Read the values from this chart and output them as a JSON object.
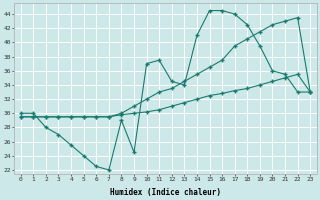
{
  "xlabel": "Humidex (Indice chaleur)",
  "background_color": "#cce8e8",
  "grid_color": "#ffffff",
  "line_color": "#1a7a6e",
  "xlim": [
    -0.5,
    23.5
  ],
  "ylim": [
    21.5,
    45.5
  ],
  "yticks": [
    22,
    24,
    26,
    28,
    30,
    32,
    34,
    36,
    38,
    40,
    42,
    44
  ],
  "xticks": [
    0,
    1,
    2,
    3,
    4,
    5,
    6,
    7,
    8,
    9,
    10,
    11,
    12,
    13,
    14,
    15,
    16,
    17,
    18,
    19,
    20,
    21,
    22,
    23
  ],
  "series1_x": [
    0,
    1,
    2,
    3,
    4,
    5,
    6,
    7,
    8,
    9,
    10,
    11,
    12,
    13,
    14,
    15,
    16,
    17,
    18,
    19,
    20,
    21,
    22,
    23
  ],
  "series1_y": [
    30.0,
    30.0,
    28.0,
    27.0,
    25.5,
    24.0,
    22.5,
    22.0,
    29.0,
    24.5,
    37.0,
    37.5,
    34.5,
    34.0,
    41.0,
    44.5,
    44.5,
    44.0,
    42.5,
    39.5,
    36.0,
    35.5,
    33.0,
    33.0
  ],
  "series2_x": [
    0,
    1,
    2,
    3,
    4,
    5,
    6,
    7,
    8,
    9,
    10,
    11,
    12,
    13,
    14,
    15,
    16,
    17,
    18,
    19,
    20,
    21,
    22,
    23
  ],
  "series2_y": [
    29.5,
    29.5,
    29.5,
    29.5,
    29.5,
    29.5,
    29.5,
    29.5,
    29.8,
    30.0,
    30.2,
    30.5,
    31.0,
    31.5,
    32.0,
    32.5,
    32.8,
    33.2,
    33.5,
    34.0,
    34.5,
    35.0,
    35.5,
    33.0
  ],
  "series3_x": [
    0,
    1,
    2,
    3,
    4,
    5,
    6,
    7,
    8,
    9,
    10,
    11,
    12,
    13,
    14,
    15,
    16,
    17,
    18,
    19,
    20,
    21,
    22,
    23
  ],
  "series3_y": [
    29.5,
    29.5,
    29.5,
    29.5,
    29.5,
    29.5,
    29.5,
    29.5,
    30.0,
    31.0,
    32.0,
    33.0,
    33.5,
    34.5,
    35.5,
    36.5,
    37.5,
    39.5,
    40.5,
    41.5,
    42.5,
    43.0,
    43.5,
    33.0
  ]
}
